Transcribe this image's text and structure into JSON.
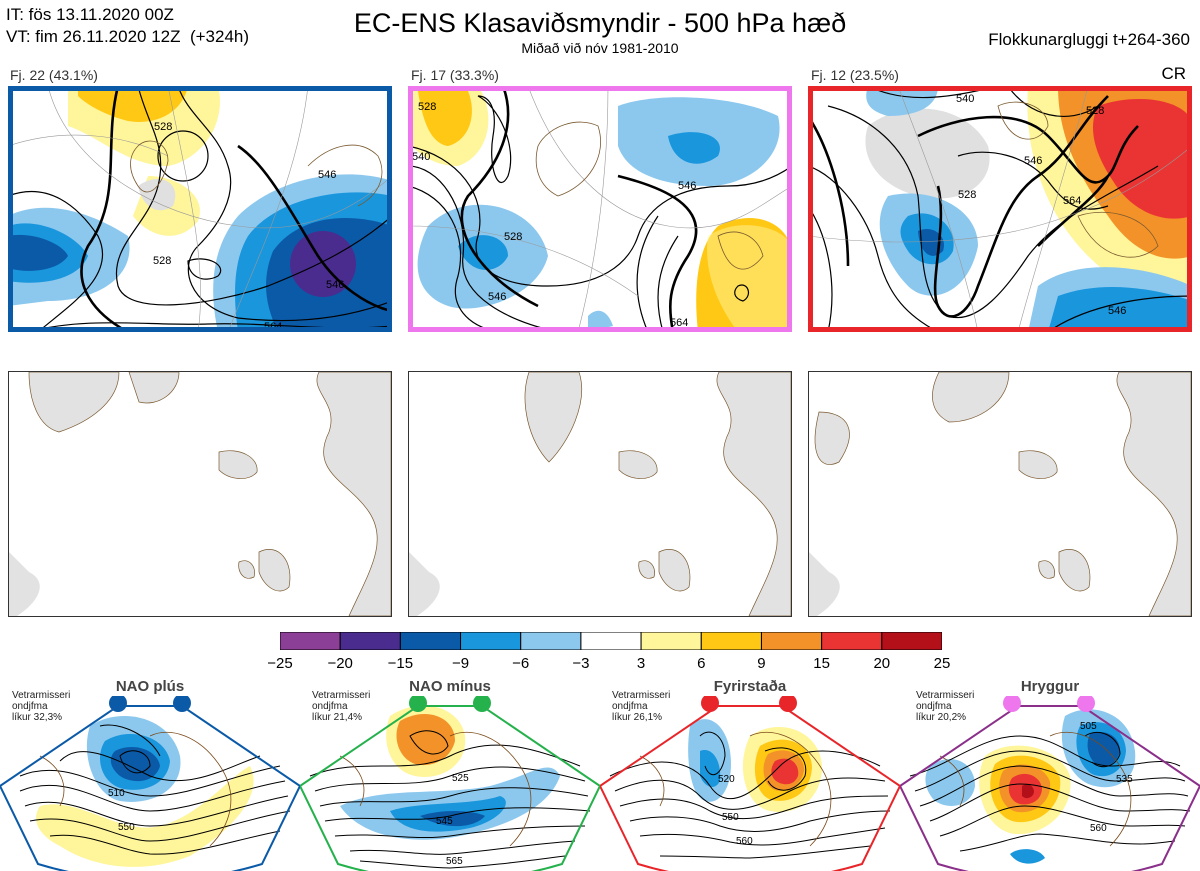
{
  "header": {
    "it_line": "IT: fös 13.11.2020 00Z",
    "vt_line": "VT: fim 26.11.2020 12Z  (+324h)",
    "title": "EC-ENS Klasaviðsmyndir - 500 hPa hæð",
    "subtitle": "Miðað við nóv 1981-2010",
    "window": "Flokkunargluggi t+264-360",
    "cr": "CR"
  },
  "clusters": [
    {
      "label": "Fj. 22 (43.1%)",
      "border_color": "#0b5aa8",
      "contour_labels": [
        "528",
        "528",
        "546",
        "546",
        "564"
      ]
    },
    {
      "label": "Fj. 17 (33.3%)",
      "border_color": "#ee77ee",
      "contour_labels": [
        "528",
        "540",
        "546",
        "546",
        "528",
        "564"
      ]
    },
    {
      "label": "Fj. 12 (23.5%)",
      "border_color": "#e8262a",
      "contour_labels": [
        "540",
        "528",
        "546",
        "528",
        "564",
        "546"
      ]
    }
  ],
  "colorbar": {
    "ticks": [
      "−25",
      "−20",
      "−15",
      "−9",
      "−6",
      "−3",
      "3",
      "6",
      "9",
      "15",
      "20",
      "25"
    ],
    "colors": [
      "#8c3f96",
      "#4a2c8f",
      "#0b5aa8",
      "#1a96dd",
      "#8cc8ee",
      "#ffffff",
      "#fff59a",
      "#ffc814",
      "#f39228",
      "#ea3433",
      "#b4101a"
    ]
  },
  "regimes": [
    {
      "name": "NAO plús",
      "note": [
        "Vetrarmisseri",
        "ondjfma",
        "líkur 32,3%"
      ],
      "color": "#0b5aa8",
      "labels": [
        "510",
        "550"
      ]
    },
    {
      "name": "NAO mínus",
      "note": [
        "Vetrarmisseri",
        "ondjfma",
        "líkur 21,4%"
      ],
      "color": "#25b14c",
      "labels": [
        "525",
        "545",
        "565"
      ]
    },
    {
      "name": "Fyrirstaða",
      "note": [
        "Vetrarmisseri",
        "ondjfma",
        "líkur 26,1%"
      ],
      "color": "#e8262a",
      "labels": [
        "520",
        "550",
        "560"
      ]
    },
    {
      "name": "Hryggur",
      "note": [
        "Vetrarmisseri",
        "ondjfma",
        "líkur 20,2%"
      ],
      "color": "#ee77ee",
      "labels": [
        "505",
        "535",
        "560"
      ]
    }
  ]
}
